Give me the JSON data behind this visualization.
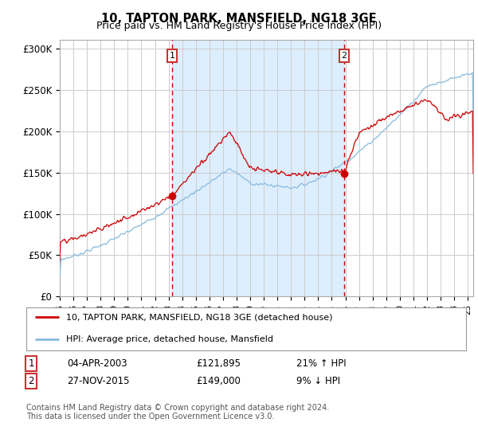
{
  "title": "10, TAPTON PARK, MANSFIELD, NG18 3GE",
  "subtitle": "Price paid vs. HM Land Registry's House Price Index (HPI)",
  "ylabel_ticks": [
    "£0",
    "£50K",
    "£100K",
    "£150K",
    "£200K",
    "£250K",
    "£300K"
  ],
  "ytick_values": [
    0,
    50000,
    100000,
    150000,
    200000,
    250000,
    300000
  ],
  "ylim": [
    0,
    310000
  ],
  "sale1_date_x": 2003.25,
  "sale1_price": 121895,
  "sale2_date_x": 2015.92,
  "sale2_price": 149000,
  "legend_line1": "10, TAPTON PARK, MANSFIELD, NG18 3GE (detached house)",
  "legend_line2": "HPI: Average price, detached house, Mansfield",
  "copyright": "Contains HM Land Registry data © Crown copyright and database right 2024.\nThis data is licensed under the Open Government Licence v3.0.",
  "line_color_red": "#cc0000",
  "line_color_blue": "#88bbdd",
  "shade_color": "#ddeeff",
  "plot_bg": "#ffffff",
  "grid_color": "#cccccc",
  "dashed_color": "#cc0000",
  "xlim_start": 1995,
  "xlim_end": 2025.4
}
